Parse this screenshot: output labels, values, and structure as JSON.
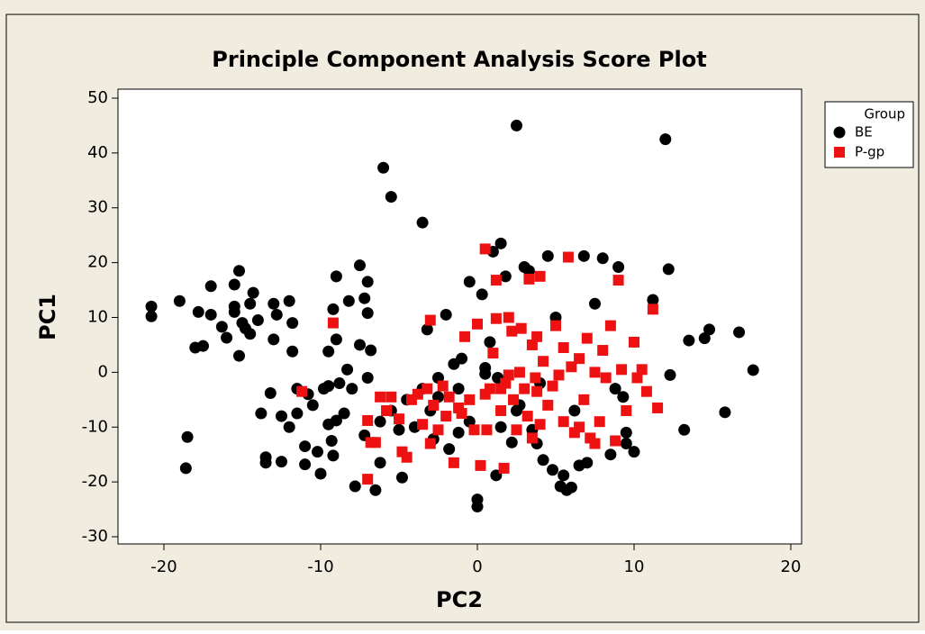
{
  "chart_data": {
    "type": "scatter",
    "title": "Principle Component Analysis Score Plot",
    "x_label": "PC2",
    "y_label": "PC1",
    "legend_title": "Group",
    "legend": "top-right-outside",
    "xlim": [
      -22.93,
      20.69
    ],
    "ylim": [
      -31.31,
      51.64
    ],
    "xticks": [
      -20,
      -10,
      0,
      10,
      20
    ],
    "yticks": [
      -30,
      -20,
      -10,
      0,
      10,
      20,
      30,
      40,
      50
    ],
    "series": [
      {
        "name": "BE",
        "color": "#000000",
        "marker": "circle",
        "x": [
          -20.8,
          -20.8,
          -19,
          -18.5,
          -18.6,
          -18,
          -17.8,
          -17.5,
          -17,
          -17,
          -16.3,
          -16,
          -15.5,
          -15.5,
          -15.5,
          -15.2,
          -15,
          -15.2,
          -14.8,
          -14.5,
          -14.5,
          -14.3,
          -14,
          -13.8,
          -13.5,
          -13.5,
          -13.2,
          -13,
          -13,
          -12.8,
          -12.5,
          -12.5,
          -12,
          -12,
          -11.5,
          -11.5,
          -11.8,
          -11.8,
          -11,
          -11,
          -10.5,
          -10.2,
          -10,
          -9.8,
          -9.5,
          -9.5,
          -9.5,
          -9.3,
          -9.2,
          -9,
          -9.2,
          -9,
          -9,
          -8.8,
          -8.5,
          -8.2,
          -8,
          -7.8,
          -7.5,
          -7.5,
          -7.2,
          -7,
          -7,
          -7,
          -6.8,
          -6.5,
          -6.2,
          -6,
          -5.5,
          -5,
          -4.8,
          -4.5,
          -4,
          -3.5,
          -3.5,
          -3.2,
          -2.8,
          -2.5,
          -2.5,
          -2,
          -1.8,
          -1.5,
          -1.2,
          -1,
          -0.5,
          0,
          0,
          0.3,
          0.5,
          0.5,
          0.8,
          1,
          1.2,
          1.3,
          1.5,
          1.8,
          2.2,
          2.5,
          2.7,
          3,
          3.3,
          3.5,
          3.8,
          4,
          4.2,
          4.5,
          4.8,
          5,
          5.3,
          5.5,
          5.7,
          6,
          6.2,
          6.5,
          6.8,
          7,
          7.5,
          8,
          8.5,
          9,
          9.3,
          9.5,
          10,
          11.2,
          12,
          12.2,
          12.3,
          13.2,
          13.5,
          14.5,
          14.8,
          15.8,
          16.7,
          17.6,
          1.5,
          -1.2,
          -3,
          -5.5,
          -6.2,
          -7.2,
          -8.3,
          -10.8,
          -0.5,
          2.5,
          9.5,
          8.8
        ],
        "values": [
          12,
          10.2,
          13,
          -11.8,
          -17.5,
          4.5,
          11,
          4.8,
          15.7,
          10.5,
          8.3,
          6.3,
          16,
          12,
          11,
          18.5,
          9,
          3,
          8,
          7,
          12.5,
          14.5,
          9.5,
          -7.5,
          -15.5,
          -16.5,
          -3.8,
          6,
          12.5,
          10.5,
          -8,
          -16.3,
          -10,
          13,
          -7.5,
          -3,
          9,
          3.8,
          -13.5,
          -16.8,
          -6,
          -14.5,
          -18.5,
          -3,
          -2.5,
          3.8,
          -9.5,
          -12.5,
          -15.2,
          -8.8,
          11.5,
          17.5,
          6,
          -2,
          -7.5,
          13,
          -3,
          -20.8,
          19.5,
          5,
          13.5,
          -1,
          16.5,
          10.8,
          4,
          -21.5,
          -9,
          37.3,
          32,
          -10.5,
          -19.2,
          -5,
          -10,
          27.3,
          -3,
          7.8,
          -12.2,
          -4.5,
          -1,
          10.5,
          -14,
          1.5,
          -3,
          2.5,
          16.5,
          -23.2,
          -24.5,
          14.2,
          -0.3,
          0.8,
          5.5,
          22,
          -18.8,
          -1,
          23.5,
          17.5,
          -12.8,
          45,
          -6,
          19.2,
          18.5,
          -10.5,
          -13,
          -2,
          -16,
          21.2,
          -17.8,
          10,
          -20.8,
          -18.8,
          -21.5,
          -21,
          -7,
          -17,
          21.2,
          -16.5,
          12.5,
          20.8,
          -15,
          19.2,
          -4.5,
          -11,
          -14.5,
          13.2,
          42.5,
          18.8,
          -0.5,
          -10.5,
          5.8,
          6.2,
          7.8,
          -7.3,
          7.3,
          0.4,
          -10,
          -11,
          -7,
          -7,
          -16.5,
          -11.5,
          0.5,
          -4,
          -9,
          -7,
          -13,
          -3
        ]
      },
      {
        "name": "P-gp",
        "color": "#ee1111",
        "marker": "square",
        "x": [
          -11.2,
          -9.2,
          -7,
          -7,
          -6.8,
          -6.5,
          -6.2,
          -5.8,
          -5.5,
          -5,
          -4.8,
          -4.5,
          -4.2,
          -3.8,
          -3.5,
          -3.2,
          -3,
          -3,
          -2.8,
          -2.5,
          -2.2,
          -2,
          -1.8,
          -1.5,
          -1.2,
          -1,
          -0.8,
          -0.5,
          -0.2,
          0,
          0.2,
          0.5,
          0.6,
          0.8,
          1,
          1.2,
          1.2,
          1.5,
          1.7,
          1.8,
          2,
          2,
          2.2,
          2.3,
          2.5,
          2.7,
          2.8,
          3,
          3.2,
          3.3,
          3.5,
          3.5,
          3.7,
          3.8,
          4,
          4,
          4.2,
          4.5,
          4.8,
          5,
          5.2,
          5.5,
          5.5,
          5.8,
          6,
          6.2,
          6.5,
          6.8,
          7,
          7.2,
          7.5,
          7.8,
          8,
          8.2,
          8.5,
          8.8,
          9,
          9.2,
          9.5,
          10,
          10.2,
          10.5,
          10.8,
          11.2,
          11.5,
          7.5,
          6.5,
          3.8,
          1.5,
          0.5
        ],
        "values": [
          -3.5,
          9,
          -8.8,
          -19.5,
          -12.8,
          -12.8,
          -4.5,
          -7,
          -4.5,
          -8.5,
          -14.5,
          -15.5,
          -5,
          -4,
          -9.5,
          -3,
          9.5,
          -13,
          -6,
          -10.5,
          -2.5,
          -8,
          -4.5,
          -16.5,
          -6.5,
          -7.5,
          6.5,
          -5,
          -10.5,
          8.8,
          -17,
          22.5,
          -10.5,
          -3,
          3.5,
          16.8,
          9.8,
          -7,
          -17.5,
          -2,
          10,
          -0.5,
          7.5,
          -5,
          -10.5,
          0,
          8,
          -3,
          -8,
          17,
          5,
          -12,
          -1,
          -3.5,
          17.5,
          -9.5,
          2,
          -6,
          -2.5,
          8.5,
          -0.5,
          4.5,
          -9,
          21,
          1,
          -11,
          2.5,
          -5,
          6.2,
          -12,
          0,
          -9,
          4,
          -1,
          8.5,
          -12.5,
          16.8,
          0.5,
          -7,
          5.5,
          -1,
          0.5,
          -3.5,
          11.5,
          -6.5,
          -13,
          -10,
          6.5,
          -3,
          -4
        ]
      }
    ]
  }
}
